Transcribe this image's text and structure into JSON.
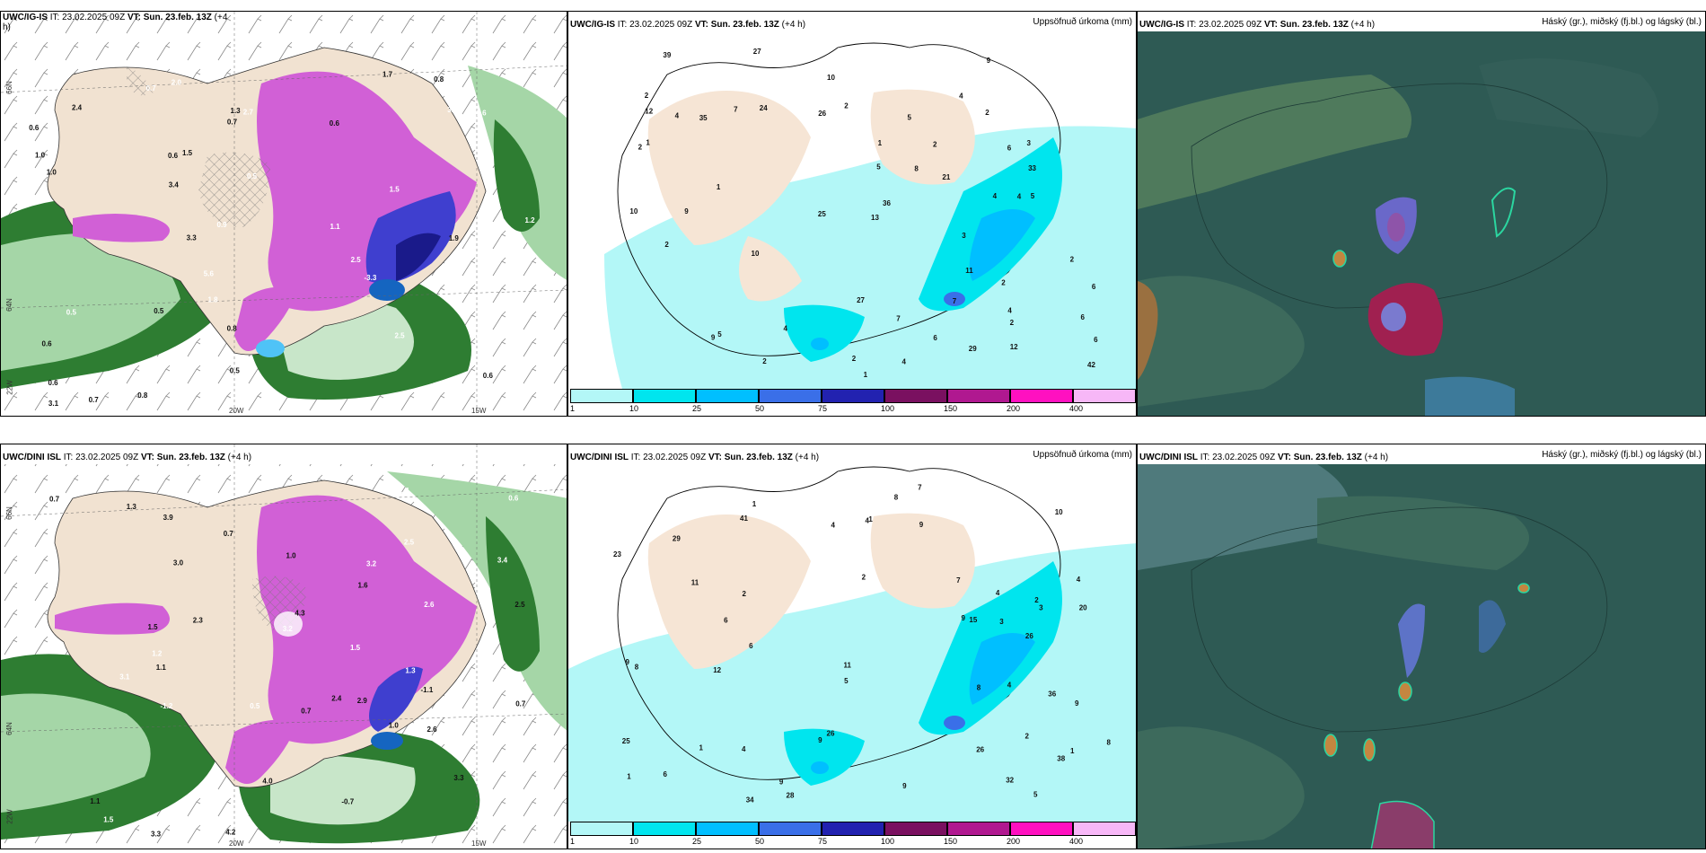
{
  "panels": {
    "top_left": {
      "model": "UWC/IG-IS",
      "it": "IT: 23.02.2025 09Z",
      "vt": "VT: Sun. 23.feb. 13Z",
      "lead": "(+4",
      "lead2": "h)"
    },
    "top_mid": {
      "model": "UWC/IG-IS",
      "it": "IT: 23.02.2025 09Z",
      "vt": "VT: Sun. 23.feb. 13Z",
      "lead": "(+4 h)",
      "right": "Uppsöfnuð úrkoma (mm)"
    },
    "top_right": {
      "model": "UWC/IG-IS",
      "it": "IT: 23.02.2025 09Z",
      "vt": "VT: Sun. 23.feb. 13Z",
      "lead": "(+4 h)",
      "right": "Háský (gr.), miðský (fj.bl.) og lágský (bl.)"
    },
    "bot_left": {
      "model": "UWC/DINI ISL",
      "it": "IT: 23.02.2025 09Z",
      "vt": "VT: Sun. 23.feb. 13Z",
      "lead": "(+4 h)"
    },
    "bot_mid": {
      "model": "UWC/DINI ISL",
      "it": "IT: 23.02.2025 09Z",
      "vt": "VT: Sun. 23.feb. 13Z",
      "lead": "(+4 h)",
      "right": "Uppsöfnuð úrkoma (mm)"
    },
    "bot_right": {
      "model": "UWC/DINI ISL",
      "it": "IT: 23.02.2025 09Z",
      "vt": "VT: Sun. 23.feb. 13Z",
      "lead": "(+4 h)",
      "right": "Háský (gr.), miðský (fj.bl.) og lágský (bl.)"
    }
  },
  "axes": {
    "lat_top": "66N",
    "lat_mid": "64N",
    "lon_20": "20W",
    "lon_15": "15W",
    "lon_22": "22W"
  },
  "colorbar": {
    "ticks": [
      "1",
      "10",
      "25",
      "50",
      "75",
      "100",
      "150",
      "200",
      "400"
    ],
    "colors": [
      "#b3f7f7",
      "#00e5ee",
      "#00bfff",
      "#3a6fe8",
      "#2222b0",
      "#7a1060",
      "#b01890",
      "#ff10c0",
      "#f7b7f7"
    ]
  },
  "temp_labels_top": [
    "0.6",
    "0.5",
    "0.9",
    "0.7",
    "1.3",
    "2.0",
    "1.5",
    "1.6",
    "2.7",
    "1.8",
    "2.4",
    "3.1",
    "2.5",
    "3.4",
    "0.8",
    "0.7",
    "1.7",
    "2.5",
    "0.3",
    "1.1",
    "0.6",
    "5.6",
    "2.6",
    "3.3",
    "0.6",
    "1.9",
    "0.5",
    "0.8",
    "-3.3",
    "3.2",
    "0.7",
    "1.2",
    "0.8",
    "0.6",
    "1.0",
    "0.5",
    "0.8",
    "1.0",
    "0.5",
    "1.5",
    "0.8",
    "0.6",
    "0.6"
  ],
  "temp_labels_bot": [
    "0.7",
    "1.0",
    "0.6",
    "-1.2",
    "0.7",
    "1.4",
    "1.0",
    "1.3",
    "3.3",
    "1.5",
    "2.3",
    "2.5",
    "3.0",
    "4.2",
    "4.0",
    "3.4",
    "3.1",
    "3.2",
    "2.6",
    "2.5",
    "2.4",
    "1.1",
    "0.7",
    "1.0",
    "1.3",
    "0.5",
    "1.6",
    "1.2",
    "2.9",
    "3.9",
    "4.3",
    "3.3",
    "-0.7",
    "3.0",
    "1.1",
    "-1.0",
    "-1.1",
    "1.5",
    "3.2",
    "1.5",
    "2.6",
    "0.7",
    "1.0"
  ],
  "precip_labels_top": [
    "1",
    "2",
    "2",
    "3",
    "2",
    "2",
    "4",
    "4",
    "1",
    "2",
    "4",
    "5",
    "3",
    "4",
    "6",
    "2",
    "6",
    "7",
    "7",
    "11",
    "12",
    "27",
    "21",
    "25",
    "33",
    "35",
    "39",
    "42",
    "36",
    "10",
    "9",
    "9",
    "9",
    "5",
    "10",
    "26",
    "27",
    "24",
    "29",
    "12",
    "13",
    "10",
    "4",
    "2",
    "2",
    "1",
    "6",
    "2",
    "4",
    "4",
    "5",
    "8",
    "7",
    "6",
    "6",
    "5",
    "1",
    "2",
    "2"
  ],
  "precip_labels_bot": [
    "2",
    "4",
    "1",
    "2",
    "1",
    "1",
    "2",
    "4",
    "10",
    "11",
    "20",
    "23",
    "26",
    "28",
    "25",
    "29",
    "38",
    "41",
    "26",
    "3",
    "9",
    "8",
    "9",
    "9",
    "9",
    "9",
    "8",
    "9",
    "7",
    "8",
    "12",
    "26",
    "34",
    "11",
    "36",
    "32",
    "15",
    "4",
    "5",
    "6",
    "4",
    "3",
    "4",
    "6",
    "9",
    "8",
    "6",
    "7",
    "2",
    "4",
    "1",
    "5",
    "1"
  ]
}
